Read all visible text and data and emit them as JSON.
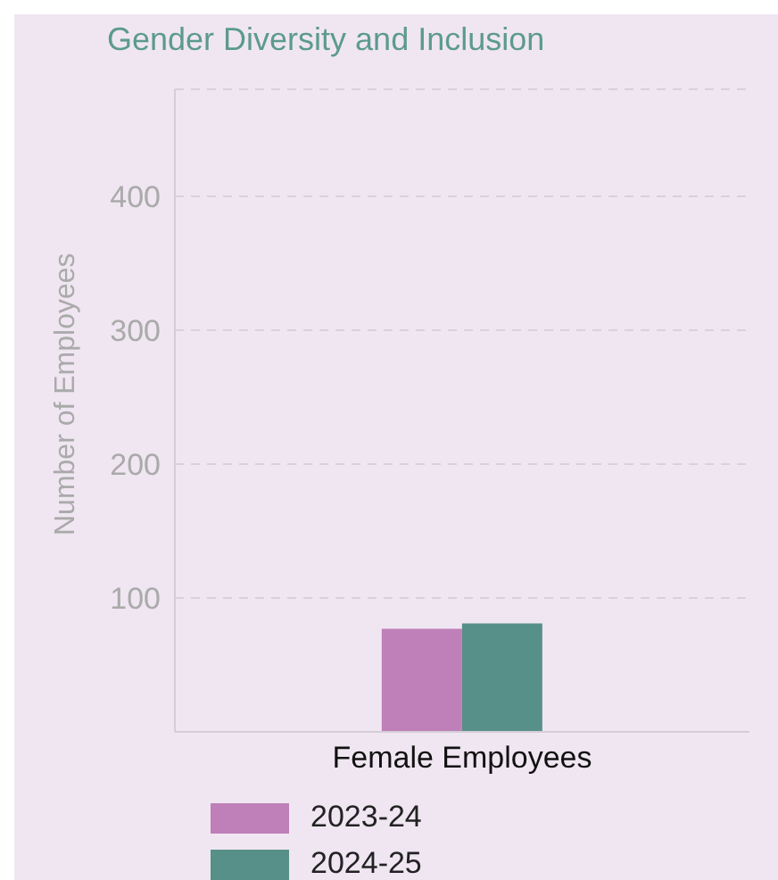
{
  "chart_data": {
    "type": "bar",
    "title": "Gender Diversity and Inclusion",
    "ylabel": "Number of Employees",
    "categories": [
      "Female Employees"
    ],
    "series": [
      {
        "name": "2023-24",
        "color": "#bf7fb8",
        "values": [
          77
        ]
      },
      {
        "name": "2024-25",
        "color": "#579089",
        "values": [
          81
        ]
      }
    ],
    "ylim": [
      0,
      480
    ],
    "yticks": [
      100,
      200,
      300,
      400
    ],
    "grid": "y",
    "legend": "bottom"
  }
}
